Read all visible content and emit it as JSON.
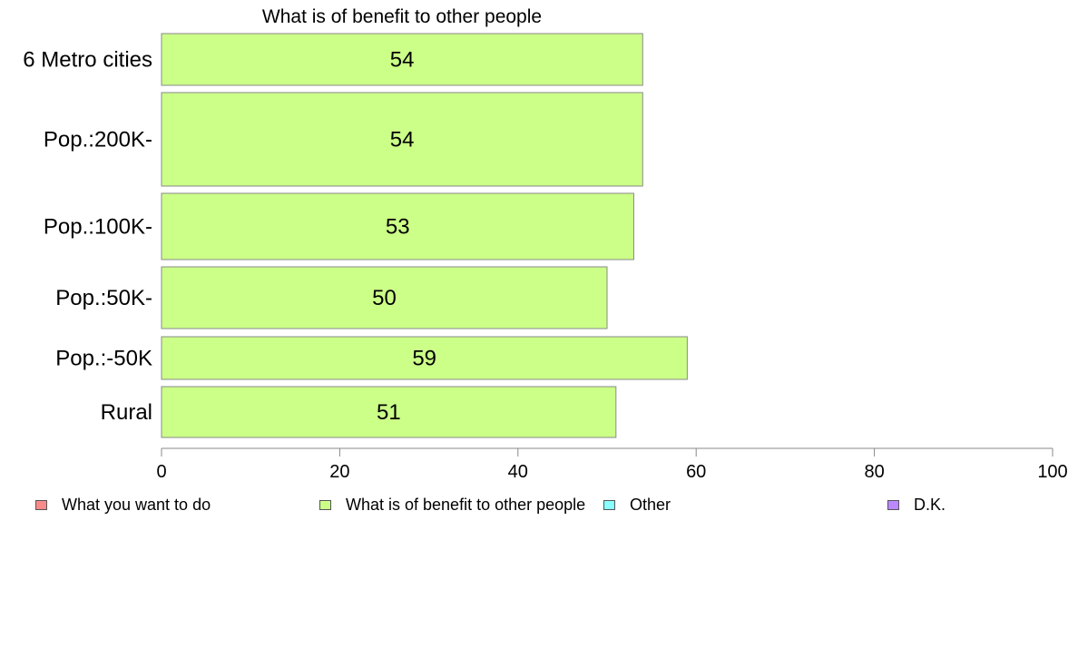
{
  "chart_data": {
    "type": "bar",
    "orientation": "horizontal",
    "title": "What is of benefit to other people",
    "categories": [
      "6 Metro cities",
      "Pop.:200K-",
      "Pop.:100K-",
      "Pop.:50K-",
      "Pop.:-50K",
      "Rural"
    ],
    "series": [
      {
        "name": "What is of benefit to other people",
        "color": "#ccff88",
        "values": [
          54,
          54,
          53,
          50,
          59,
          51
        ]
      }
    ],
    "xlim": [
      0,
      100
    ],
    "xticks": [
      0,
      20,
      40,
      60,
      80,
      100
    ],
    "grid": false,
    "legend_position": "bottom",
    "legend": [
      {
        "label": "What you want to do",
        "color": "#f88a8a"
      },
      {
        "label": "What is of benefit to other people",
        "color": "#ccff88"
      },
      {
        "label": "Other",
        "color": "#88ffff"
      },
      {
        "label": "D.K.",
        "color": "#bb88ff"
      }
    ]
  }
}
